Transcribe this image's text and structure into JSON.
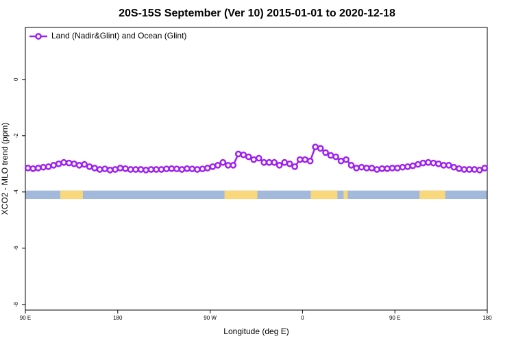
{
  "chart_data": {
    "type": "line",
    "title": "20S-15S September (Ver 10)   2015-01-01 to 2020-12-18",
    "x_label": "Longitude (deg E)",
    "y_label": "XCO2 - MLO trend (ppm)",
    "xlim": [
      90,
      540
    ],
    "ylim": [
      -8.2,
      1.85
    ],
    "xticks": [
      {
        "value": 90,
        "label": "90 E"
      },
      {
        "value": 180,
        "label": "180"
      },
      {
        "value": 270,
        "label": "90 W"
      },
      {
        "value": 360,
        "label": "0"
      },
      {
        "value": 450,
        "label": "90 E"
      },
      {
        "value": 540,
        "label": "180"
      }
    ],
    "yticks": [
      -8,
      -6,
      -4,
      -2,
      0
    ],
    "legend_position": "top-left",
    "x": [
      92.5,
      97.5,
      102.5,
      107.5,
      112.5,
      117.5,
      122.5,
      127.5,
      132.5,
      137.5,
      142.5,
      147.5,
      152.5,
      157.5,
      162.5,
      167.5,
      172.5,
      177.5,
      182.5,
      187.5,
      192.5,
      197.5,
      202.5,
      207.5,
      212.5,
      217.5,
      222.5,
      227.5,
      232.5,
      237.5,
      242.5,
      247.5,
      252.5,
      257.5,
      262.5,
      267.5,
      272.5,
      277.5,
      282.5,
      287.5,
      292.5,
      297.5,
      302.5,
      307.5,
      312.5,
      317.5,
      322.5,
      327.5,
      332.5,
      337.5,
      342.5,
      347.5,
      352.5,
      357.5,
      362.5,
      367.5,
      372.5,
      377.5,
      382.5,
      387.5,
      392.5,
      397.5,
      402.5,
      407.5,
      412.5,
      417.5,
      422.5,
      427.5,
      432.5,
      437.5,
      442.5,
      447.5,
      452.5,
      457.5,
      462.5,
      467.5,
      472.5,
      477.5,
      482.5,
      487.5,
      492.5,
      497.5,
      502.5,
      507.5,
      512.5,
      517.5,
      522.5,
      527.5,
      532.5,
      537.5
    ],
    "series": [
      {
        "name": "Land (Nadir&Glint) and Ocean (Glint)",
        "color": "#a020f0",
        "values": [
          -3.15,
          -3.17,
          -3.15,
          -3.12,
          -3.1,
          -3.05,
          -3.0,
          -2.95,
          -2.97,
          -3.0,
          -3.05,
          -3.02,
          -3.1,
          -3.15,
          -3.2,
          -3.18,
          -3.22,
          -3.2,
          -3.15,
          -3.17,
          -3.2,
          -3.2,
          -3.2,
          -3.22,
          -3.2,
          -3.2,
          -3.2,
          -3.18,
          -3.17,
          -3.18,
          -3.2,
          -3.17,
          -3.18,
          -3.2,
          -3.18,
          -3.15,
          -3.1,
          -3.05,
          -2.95,
          -3.05,
          -3.05,
          -2.65,
          -2.68,
          -2.75,
          -2.85,
          -2.8,
          -2.95,
          -2.95,
          -2.95,
          -3.05,
          -2.95,
          -3.0,
          -3.1,
          -2.85,
          -2.85,
          -2.9,
          -2.4,
          -2.45,
          -2.6,
          -2.7,
          -2.75,
          -2.9,
          -2.85,
          -3.05,
          -3.15,
          -3.12,
          -3.15,
          -3.15,
          -3.2,
          -3.17,
          -3.17,
          -3.15,
          -3.15,
          -3.12,
          -3.1,
          -3.07,
          -3.02,
          -2.97,
          -2.95,
          -2.97,
          -3.0,
          -3.05,
          -3.05,
          -3.12,
          -3.17,
          -3.2,
          -3.2,
          -3.2,
          -3.22,
          -3.15
        ]
      }
    ],
    "surface_strip": {
      "y_range": [
        -4.25,
        -3.95
      ],
      "ocean_color": "#a3b9dc",
      "land_color": "#f9d77b",
      "land_lon": [
        [
          124,
          146
        ],
        [
          284,
          316
        ],
        [
          368,
          394
        ],
        [
          400,
          404
        ],
        [
          474,
          499
        ]
      ]
    }
  }
}
